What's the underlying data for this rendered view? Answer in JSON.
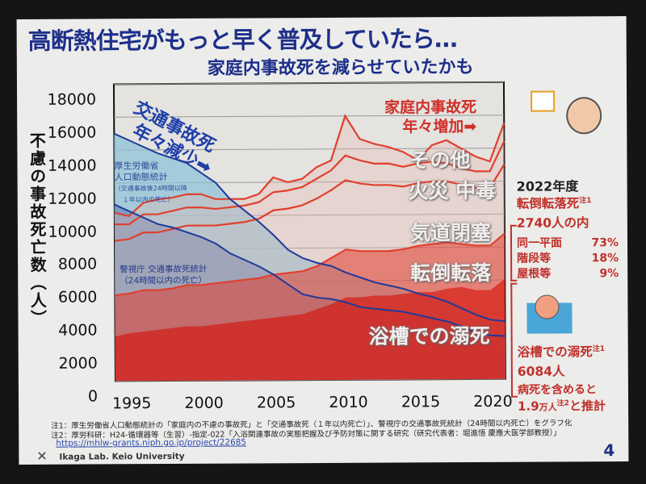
{
  "title": "高断熱住宅がもっと早く普及していたら…",
  "subtitle": "家庭内事故死を減らせていたかも",
  "chart_data": {
    "type": "area",
    "ylabel": "不慮の事故死亡数（人）",
    "ylim": [
      0,
      18000
    ],
    "yticks": [
      "0",
      "2000",
      "4000",
      "6000",
      "8000",
      "10000",
      "12000",
      "14000",
      "16000",
      "18000"
    ],
    "xticks": [
      "1995",
      "2000",
      "2005",
      "2010",
      "2015",
      "2020"
    ],
    "x": [
      1995,
      1996,
      1997,
      1998,
      1999,
      2000,
      2001,
      2002,
      2003,
      2004,
      2005,
      2006,
      2007,
      2008,
      2009,
      2010,
      2011,
      2012,
      2013,
      2014,
      2015,
      2016,
      2017,
      2018,
      2019,
      2020,
      2021,
      2022
    ],
    "stacked_series": [
      {
        "name": "浴槽での溺死",
        "values": [
          2700,
          2900,
          3000,
          3100,
          3200,
          3300,
          3300,
          3400,
          3500,
          3600,
          3700,
          3800,
          3900,
          4000,
          4300,
          4600,
          5000,
          5000,
          5100,
          5100,
          5200,
          5300,
          5300,
          5500,
          5600,
          5400,
          5400,
          6084
        ]
      },
      {
        "name": "転倒転落",
        "values": [
          2500,
          2400,
          2500,
          2400,
          2400,
          2500,
          2500,
          2500,
          2500,
          2500,
          2500,
          2600,
          2600,
          2600,
          2600,
          2800,
          2900,
          2800,
          2700,
          2700,
          2700,
          2800,
          2900,
          2800,
          2600,
          2700,
          2700,
          2740
        ]
      },
      {
        "name": "気道閉塞",
        "values": [
          3300,
          3300,
          3500,
          3500,
          3600,
          3600,
          3600,
          3500,
          3500,
          3500,
          3600,
          3900,
          3900,
          4000,
          4100,
          4100,
          4200,
          4100,
          4000,
          4000,
          3800,
          3800,
          3800,
          3700,
          3600,
          3500,
          3500,
          4200
        ]
      },
      {
        "name": "火災 中毒",
        "values": [
          1000,
          900,
          1100,
          1100,
          1100,
          1100,
          1100,
          1000,
          1000,
          1000,
          1000,
          1100,
          1100,
          1100,
          1200,
          1200,
          1500,
          1400,
          1300,
          1300,
          1200,
          1200,
          1200,
          1100,
          1000,
          1000,
          1000,
          1400
        ]
      },
      {
        "name": "その他",
        "values": [
          700,
          500,
          700,
          900,
          800,
          800,
          800,
          600,
          500,
          400,
          500,
          900,
          500,
          500,
          700,
          600,
          2400,
          1300,
          1200,
          1000,
          900,
          200,
          1000,
          1400,
          1200,
          900,
          600,
          1100
        ]
      }
    ],
    "line_series": [
      {
        "name": "厚生労働省 人口動態統計",
        "values": [
          15000,
          14600,
          14200,
          13800,
          13500,
          13200,
          12600,
          12000,
          11000,
          10300,
          9600,
          8800,
          7900,
          7400,
          7100,
          6900,
          6500,
          6200,
          5900,
          5700,
          5500,
          5200,
          5000,
          4700,
          4300,
          3900,
          3600,
          3500
        ]
      },
      {
        "name": "警視庁 交通事故死統計",
        "values": [
          10700,
          10300,
          9900,
          9500,
          9300,
          9000,
          8700,
          8300,
          7700,
          7300,
          6900,
          6400,
          5800,
          5200,
          5000,
          4900,
          4700,
          4400,
          4300,
          4200,
          4100,
          3900,
          3700,
          3500,
          3200,
          2800,
          2650,
          2600
        ]
      }
    ],
    "annotations": {
      "traffic": [
        "交通事故死",
        "年々減少➡"
      ],
      "home": [
        "家庭内事故死",
        "年々増加➡"
      ],
      "mhlw": [
        "厚生労働省",
        "人口動態統計",
        "（交通事故後24時間以降",
        "１年以内の死亡）"
      ],
      "police": [
        "警視庁 交通事故死統計",
        "（24時間以内の死亡）"
      ],
      "labels": [
        "その他",
        "火災 中毒",
        "気道閉塞",
        "転倒転落",
        "浴槽での溺死"
      ]
    },
    "colors": {
      "bath": "#d8281f",
      "falls": "#e3574a",
      "rest": "#e9b8b0",
      "line_red": "#e0402f",
      "mhlw": "#1f3a9a",
      "mhlw_fill": "#8fc3d8",
      "police_fill": "#6f8fb8"
    }
  },
  "side": {
    "year": "2022年度",
    "falls_title": "転倒転落死",
    "falls_note": "注1",
    "falls_total": "2740人の内",
    "breakdown": [
      {
        "label": "同一平面",
        "pct": "73%"
      },
      {
        "label": "階段等",
        "pct": "18%"
      },
      {
        "label": "屋根等",
        "pct": "9%"
      }
    ],
    "bath_title": "浴槽での溺死",
    "bath_note": "注1",
    "bath_total": "6084人",
    "bath_line3": "病死を含めると",
    "bath_line4a": "1.9",
    "bath_line4b": "万人",
    "bath_line4c": "注2",
    "bath_line4d": "と推計"
  },
  "notes": [
    "注1：厚生労働省人口動態統計の「家庭内の不慮の事故死」と「交通事故死（１年以内死亡）」、警視庁の交通事故死統計（24時間以内死亡）をグラフ化",
    "注2：厚労科研：H24-循環器等（生習）-指定-022「入浴関連事故の実態把握及び予防対策に関する研究（研究代表者：堀進悟 慶應大医学部教授）」"
  ],
  "link": "https://mhlw-grants.niph.go.jp/project/22685",
  "footer": "Ikaga Lab. Keio University",
  "page_number": "4"
}
